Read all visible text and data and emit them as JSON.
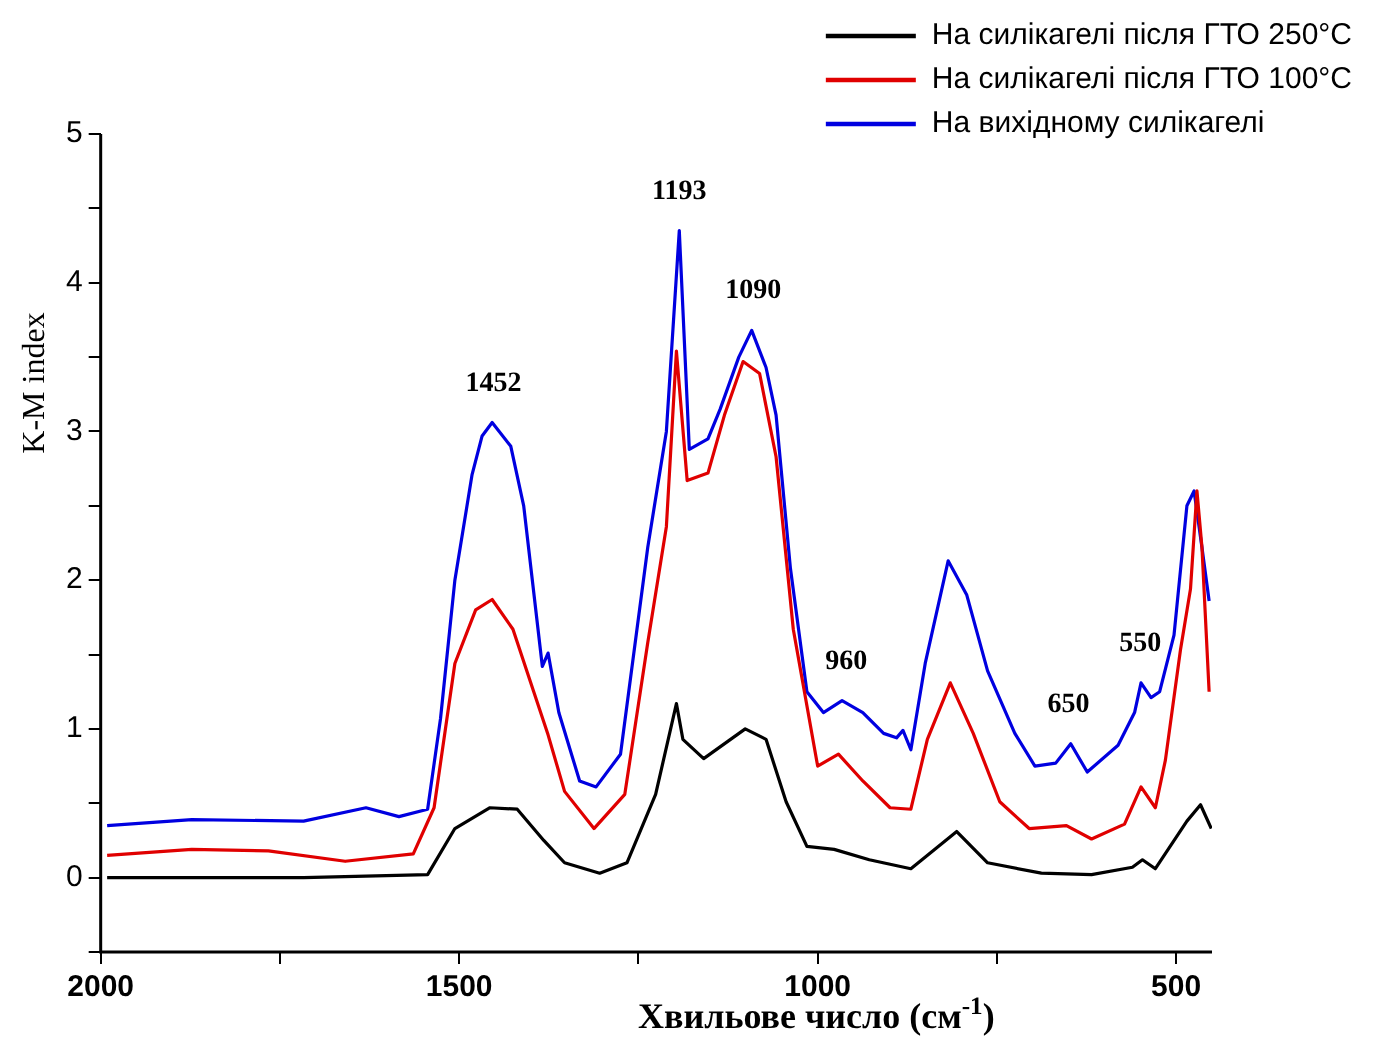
{
  "chart_data": {
    "type": "line",
    "xlabel": "Хвильове число (см$^{-1}$)",
    "ylabel": "K-M index",
    "xlim": [
      2000,
      450
    ],
    "xticks": [
      2000,
      {
        "value": 1750,
        "label": null
      },
      1500,
      {
        "value": 1250,
        "label": null
      },
      1000,
      {
        "value": 750,
        "label": null
      },
      500
    ],
    "ylim": [
      -0.5,
      5
    ],
    "yticks": [
      {
        "value": -0.5,
        "label": null
      },
      0,
      {
        "value": 0.5,
        "label": null
      },
      1,
      {
        "value": 1.5,
        "label": null
      },
      2,
      {
        "value": 2.5,
        "label": null
      },
      3,
      {
        "value": 3.5,
        "label": null
      },
      4,
      {
        "value": 4.5,
        "label": null
      },
      5
    ],
    "grid": false,
    "legend": "top right",
    "marker": "none",
    "line_style": "solid",
    "annotations": [
      {
        "text": "1452",
        "x": 1452,
        "y": 3.06
      },
      {
        "text": "1193",
        "x": 1193,
        "y": 4.35
      },
      {
        "text": "1090",
        "x": 1090,
        "y": 3.68
      },
      {
        "text": "960",
        "x": 960,
        "y": 1.19
      },
      {
        "text": "650",
        "x": 650,
        "y": 0.9
      },
      {
        "text": "550",
        "x": 550,
        "y": 1.31
      }
    ],
    "series": [
      {
        "name": "На силікагелі після ГТО 250°C",
        "color": "#000000",
        "x": [
          1991,
          1717,
          1544,
          1506,
          1457,
          1419,
          1382,
          1353,
          1304,
          1266,
          1226,
          1197,
          1188,
          1159,
          1101,
          1072,
          1044,
          1015,
          977,
          928,
          870,
          806,
          763,
          688,
          618,
          561,
          547,
          529,
          485,
          466,
          451
        ],
        "values": [
          0,
          0,
          0.02,
          0.33,
          0.47,
          0.46,
          0.25,
          0.1,
          0.03,
          0.1,
          0.56,
          1.17,
          0.93,
          0.8,
          1.0,
          0.93,
          0.51,
          0.21,
          0.19,
          0.12,
          0.06,
          0.31,
          0.1,
          0.03,
          0.02,
          0.07,
          0.12,
          0.06,
          0.38,
          0.49,
          0.33
        ]
      },
      {
        "name": "На силікагелі після ГТО 100°C",
        "color": "#e00000",
        "x": [
          1991,
          1873,
          1766,
          1659,
          1564,
          1535,
          1506,
          1477,
          1454,
          1425,
          1396,
          1376,
          1353,
          1312,
          1269,
          1237,
          1211,
          1197,
          1182,
          1153,
          1130,
          1104,
          1081,
          1058,
          1034,
          1000,
          971,
          937,
          899,
          870,
          847,
          815,
          783,
          746,
          705,
          653,
          618,
          572,
          549,
          529,
          515,
          494,
          480,
          471,
          464,
          454
        ],
        "values": [
          0.15,
          0.19,
          0.18,
          0.11,
          0.16,
          0.47,
          1.44,
          1.8,
          1.87,
          1.67,
          1.25,
          0.96,
          0.58,
          0.33,
          0.56,
          1.58,
          2.36,
          3.54,
          2.67,
          2.72,
          3.11,
          3.47,
          3.39,
          2.83,
          1.67,
          0.75,
          0.83,
          0.65,
          0.47,
          0.46,
          0.93,
          1.31,
          0.97,
          0.51,
          0.33,
          0.35,
          0.26,
          0.36,
          0.61,
          0.47,
          0.79,
          1.53,
          1.94,
          2.6,
          2.22,
          1.25
        ]
      },
      {
        "name": "На вихідному силікагелі",
        "color": "#0000e0",
        "x": [
          1991,
          1873,
          1717,
          1630,
          1584,
          1544,
          1526,
          1506,
          1482,
          1468,
          1454,
          1428,
          1410,
          1384,
          1376,
          1361,
          1332,
          1309,
          1275,
          1237,
          1211,
          1193,
          1179,
          1153,
          1136,
          1110,
          1092,
          1072,
          1058,
          1038,
          1015,
          992,
          966,
          937,
          908,
          890,
          881,
          870,
          850,
          818,
          792,
          763,
          725,
          697,
          668,
          647,
          624,
          581,
          558,
          549,
          535,
          523,
          503,
          485,
          475,
          464,
          454
        ],
        "values": [
          0.35,
          0.39,
          0.38,
          0.47,
          0.41,
          0.46,
          1.07,
          2.0,
          2.71,
          2.97,
          3.06,
          2.9,
          2.5,
          1.42,
          1.51,
          1.11,
          0.65,
          0.61,
          0.83,
          2.22,
          3.0,
          4.35,
          2.88,
          2.95,
          3.15,
          3.5,
          3.68,
          3.43,
          3.11,
          2.08,
          1.25,
          1.11,
          1.19,
          1.11,
          0.97,
          0.94,
          0.99,
          0.86,
          1.44,
          2.13,
          1.9,
          1.39,
          0.97,
          0.75,
          0.77,
          0.9,
          0.71,
          0.89,
          1.11,
          1.31,
          1.21,
          1.25,
          1.63,
          2.5,
          2.6,
          2.22,
          1.86
        ]
      }
    ]
  }
}
